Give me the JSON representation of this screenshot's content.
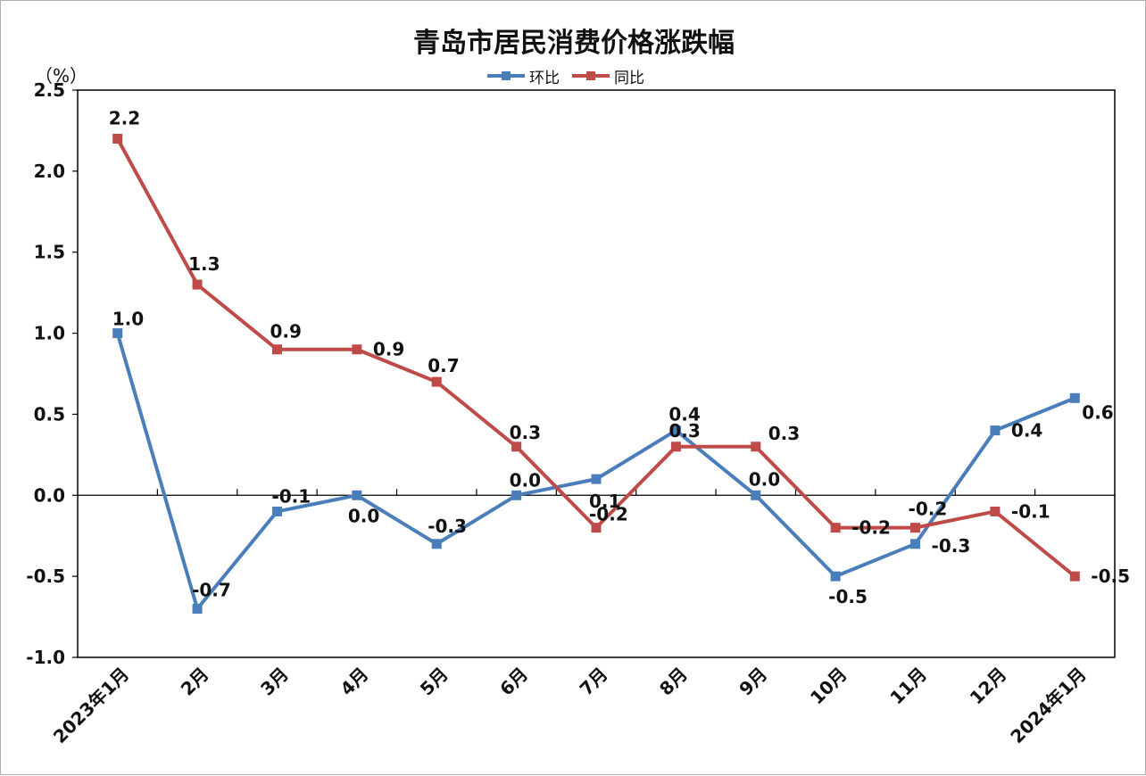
{
  "chart_data": {
    "type": "line",
    "title": "青岛市居民消费价格涨跌幅",
    "y_unit": "（%）",
    "xlabel": "",
    "ylabel": "",
    "categories": [
      "2023年1月",
      "2月",
      "3月",
      "4月",
      "5月",
      "6月",
      "7月",
      "8月",
      "9月",
      "10月",
      "11月",
      "12月",
      "2024年1月"
    ],
    "ylim": [
      -1.0,
      2.5
    ],
    "y_ticks": [
      2.5,
      2.0,
      1.5,
      1.0,
      0.5,
      0.0,
      -0.5,
      -1.0
    ],
    "y_tick_labels": [
      "2.5",
      "2.0",
      "1.5",
      "1.0",
      "0.5",
      "0.0",
      "-0.5",
      "-1.0"
    ],
    "grid": false,
    "legend_position": "top-center",
    "series": [
      {
        "name": "环比",
        "color": "#4a7ebb",
        "values": [
          1.0,
          -0.7,
          -0.1,
          0.0,
          -0.3,
          0.0,
          0.1,
          0.4,
          0.0,
          -0.5,
          -0.3,
          0.4,
          0.6
        ],
        "labels": [
          "1.0",
          "-0.7",
          "-0.1",
          "0.0",
          "-0.3",
          "0.0",
          "0.1",
          "0.4",
          "0.0",
          "-0.5",
          "-0.3",
          "0.4",
          "0.6"
        ]
      },
      {
        "name": "同比",
        "color": "#be4b48",
        "values": [
          2.2,
          1.3,
          0.9,
          0.9,
          0.7,
          0.3,
          -0.2,
          0.3,
          0.3,
          -0.2,
          -0.2,
          -0.1,
          -0.5
        ],
        "labels": [
          "2.2",
          "1.3",
          "0.9",
          "0.9",
          "0.7",
          "0.3",
          "-0.2",
          "0.3",
          "0.3",
          "-0.2",
          "-0.2",
          "-0.1",
          "-0.5"
        ]
      }
    ]
  }
}
